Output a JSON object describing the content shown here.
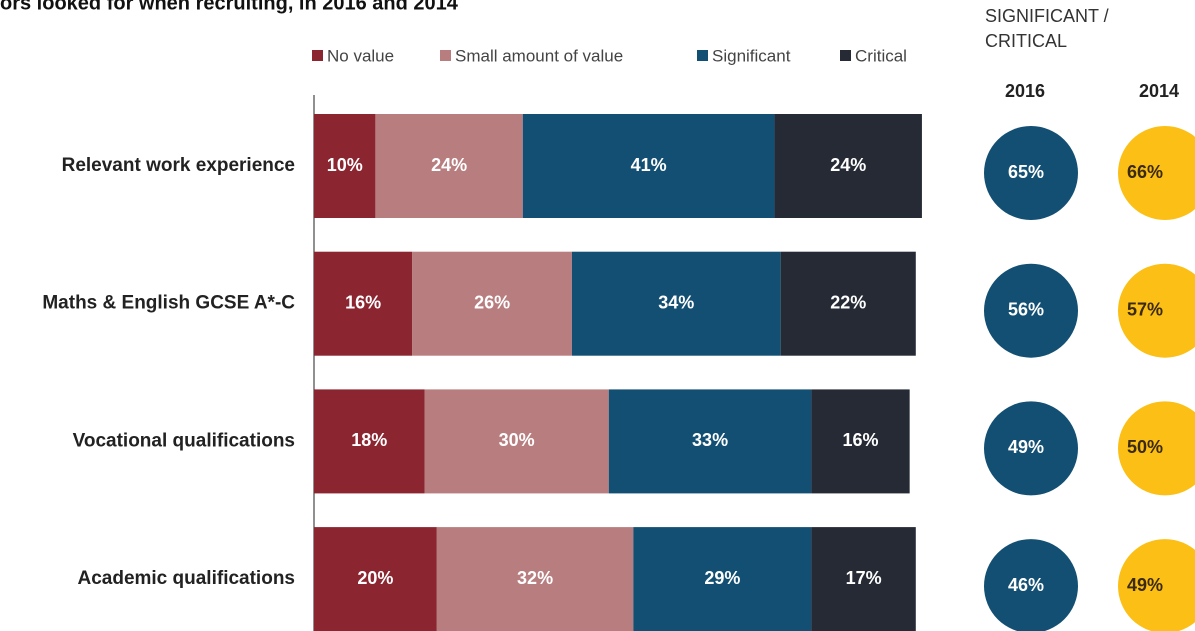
{
  "chart_data": {
    "type": "stacked-bar",
    "title": "ors looked for when recruiting, in 2016 and 2014",
    "categories": [
      "Relevant work experience",
      "Maths & English GCSE A*-C",
      "Vocational qualifications",
      "Academic qualifications"
    ],
    "series": [
      {
        "name": "No value",
        "color": "#8b2530",
        "values": [
          10,
          16,
          18,
          20
        ],
        "value_labels": [
          "10%",
          "16%",
          "18%",
          "20%"
        ]
      },
      {
        "name": "Small amount of value",
        "color": "#b87d7f",
        "values": [
          24,
          26,
          30,
          32
        ],
        "value_labels": [
          "24%",
          "26%",
          "30%",
          "32%"
        ]
      },
      {
        "name": "Significant",
        "color": "#134f73",
        "values": [
          41,
          34,
          33,
          29
        ],
        "value_labels": [
          "41%",
          "34%",
          "33%",
          "29%"
        ]
      },
      {
        "name": "Critical",
        "color": "#252a35",
        "values": [
          24,
          22,
          16,
          17
        ],
        "value_labels": [
          "24%",
          "22%",
          "16%",
          "17%"
        ]
      }
    ],
    "side": {
      "title": "SIGNIFICANT / CRITICAL",
      "columns": [
        {
          "name": "2016",
          "color": "#134f73",
          "values": [
            65,
            56,
            49,
            46
          ],
          "value_labels": [
            "65%",
            "56%",
            "49%",
            "46%"
          ]
        },
        {
          "name": "2014",
          "color": "#fbbf16",
          "values": [
            66,
            57,
            50,
            49
          ],
          "value_labels": [
            "66%",
            "57%",
            "50%",
            "49%"
          ]
        }
      ]
    }
  }
}
